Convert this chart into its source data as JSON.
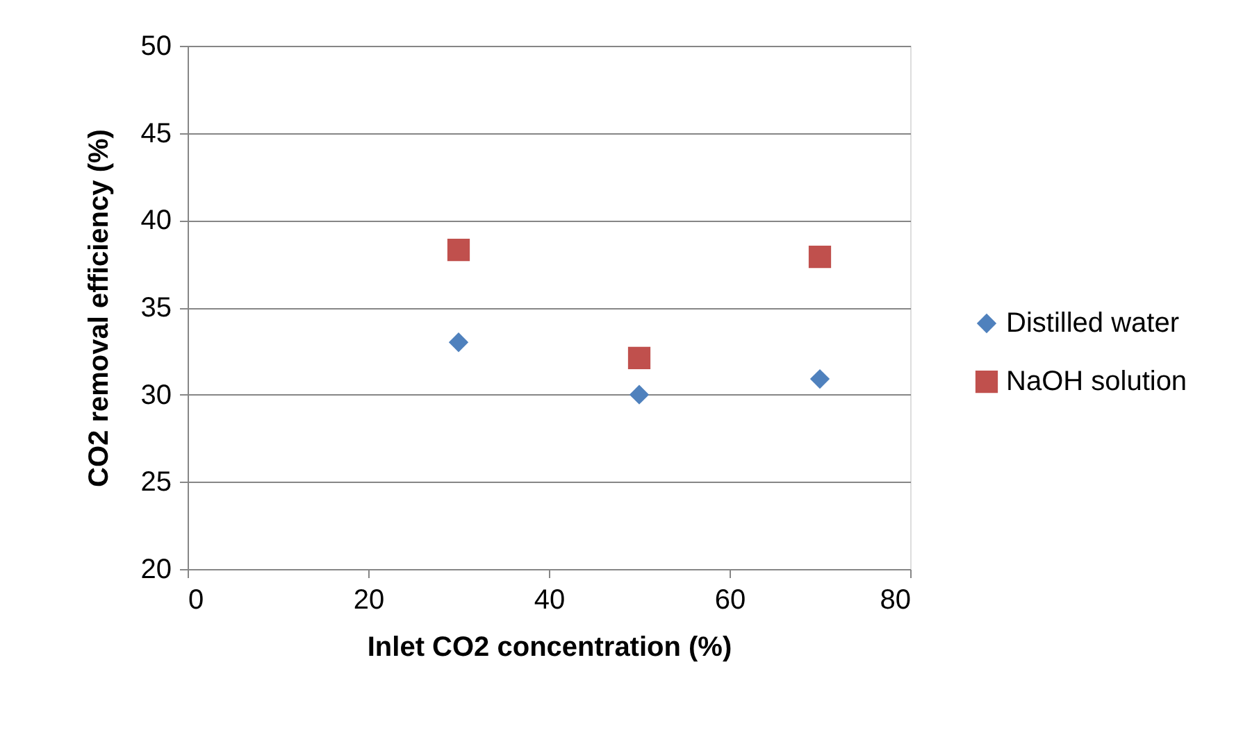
{
  "chart_data": {
    "type": "scatter",
    "xlabel": "Inlet CO2 concentration (%)",
    "ylabel": "CO2 removal efficiency (%)",
    "x": [
      30,
      50,
      70
    ],
    "series": [
      {
        "name": "Distilled water",
        "color": "#4f81bd",
        "marker": "diamond",
        "values": [
          33.0,
          30.0,
          30.9
        ]
      },
      {
        "name": "NaOH solution",
        "color": "#c0504d",
        "marker": "square",
        "values": [
          38.3,
          32.1,
          37.9
        ]
      }
    ],
    "xlim": [
      0,
      80
    ],
    "xticks": [
      0,
      20,
      40,
      60,
      80
    ],
    "ylim": [
      20,
      50
    ],
    "yticks": [
      20,
      25,
      30,
      35,
      40,
      45,
      50
    ],
    "grid": "y",
    "legend": "right"
  }
}
